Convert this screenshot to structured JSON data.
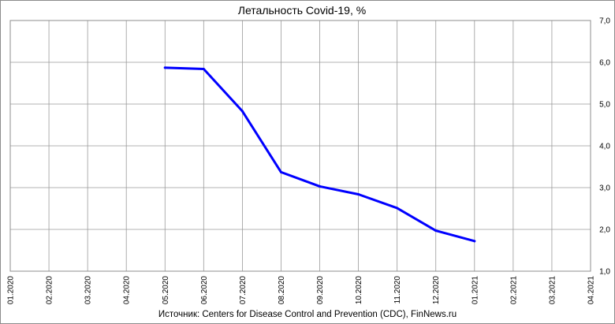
{
  "chart_data": {
    "type": "line",
    "title": "Летальность Covid-19, %",
    "categories": [
      "01.2020",
      "02.2020",
      "03.2020",
      "04.2020",
      "05.2020",
      "06.2020",
      "07.2020",
      "08.2020",
      "09.2020",
      "10.2020",
      "11.2020",
      "12.2020",
      "01.2021",
      "02.2021",
      "03.2021",
      "04.2021"
    ],
    "series": [
      {
        "x": [
          "05.2020",
          "06.2020",
          "07.2020",
          "08.2020",
          "09.2020",
          "10.2020",
          "11.2020",
          "12.2020",
          "01.2021"
        ],
        "values": [
          5.87,
          5.84,
          4.83,
          3.37,
          3.03,
          2.84,
          2.51,
          1.97,
          1.72
        ],
        "color": "#0000ff"
      }
    ],
    "ylim": [
      1.0,
      7.0
    ],
    "yticks": [
      "1,0",
      "2,0",
      "3,0",
      "4,0",
      "5,0",
      "6,0",
      "7,0"
    ],
    "y_axis_position": "right",
    "x_tick_rotation": "vertical",
    "grid": true,
    "source": "Источник: Centers for Disease Control and Prevention (CDC), FinNews.ru"
  }
}
